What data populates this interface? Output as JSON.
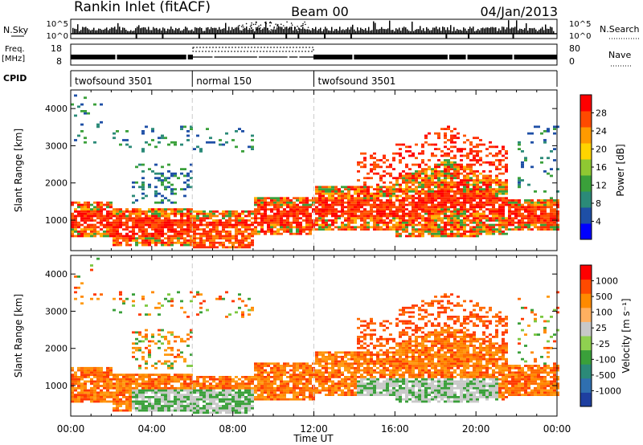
{
  "header": {
    "title": "Rankin Inlet (fitACF)",
    "beam": "Beam 00",
    "date": "04/Jan/2013"
  },
  "noise_panel": {
    "left_label": "N.Sky",
    "right_label": "N.Search",
    "left_ticks": [
      "10^5",
      "10^0"
    ],
    "right_ticks": [
      "10^5",
      "10^0"
    ]
  },
  "freq_panel": {
    "left_label": "Freq.",
    "left_unit": "[MHz]",
    "right_label": "Nave",
    "left_ticks": [
      "18",
      "8"
    ],
    "right_ticks": [
      "80",
      "0"
    ]
  },
  "cpid": {
    "label": "CPID",
    "segments": [
      {
        "name": "twofsound 3501",
        "start": 0.0,
        "end": 6.0
      },
      {
        "name": "normal 150",
        "start": 6.0,
        "end": 12.0
      },
      {
        "name": "twofsound 3501",
        "start": 12.0,
        "end": 24.0
      }
    ]
  },
  "chart_data": [
    {
      "type": "heatmap",
      "title": "",
      "quantity": "Power",
      "xlabel": "",
      "ylabel": "Slant Range [km]",
      "xlim": [
        0,
        24
      ],
      "ylim": [
        180,
        4500
      ],
      "y_ticks": [
        "1000",
        "2000",
        "3000",
        "4000"
      ],
      "colorbar": {
        "label": "Power [dB]",
        "ticks": [
          "28",
          "24",
          "20",
          "16",
          "12",
          "8",
          "4"
        ],
        "colors": [
          "#0000ff",
          "#1e4fa6",
          "#2b8a78",
          "#3aa03a",
          "#8fc832",
          "#ffd400",
          "#ff9a00",
          "#ff4a00",
          "#ff0000"
        ]
      },
      "dominant_colors": [
        "#ff2a00",
        "#ff7a00",
        "#3aa03a",
        "#1e4fa6"
      ]
    },
    {
      "type": "heatmap",
      "title": "",
      "quantity": "Velocity",
      "xlabel": "Time UT",
      "ylabel": "Slant Range [km]",
      "xlim": [
        0,
        24
      ],
      "ylim": [
        180,
        4500
      ],
      "y_ticks": [
        "1000",
        "2000",
        "3000",
        "4000"
      ],
      "x_ticks": [
        "00:00",
        "04:00",
        "08:00",
        "12:00",
        "16:00",
        "20:00",
        "00:00"
      ],
      "colorbar": {
        "label": "Velocity [m s⁻¹]",
        "ticks": [
          "1000",
          "500",
          "100",
          "25",
          "-25",
          "-100",
          "-500",
          "-1000"
        ],
        "colors": [
          "#1e3fa0",
          "#2f6fb0",
          "#2b8a78",
          "#3aa03a",
          "#8fd050",
          "#c8c8c8",
          "#ffb060",
          "#ff8a00",
          "#ff4a00",
          "#ff0000"
        ]
      },
      "dominant_colors": [
        "#ff8a00",
        "#3aa03a",
        "#c8c8c8",
        "#ff2a00"
      ]
    }
  ]
}
